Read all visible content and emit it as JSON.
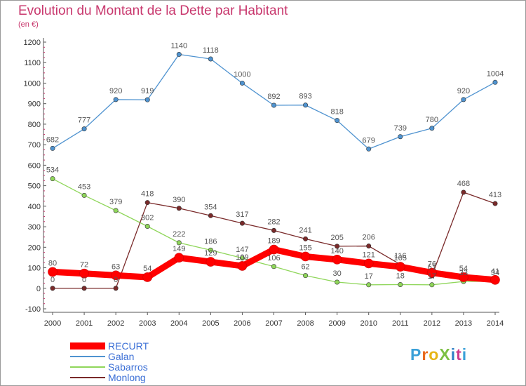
{
  "header": {
    "title": "Evolution du Montant de la Dette par Habitant",
    "subtitle": "(en €)"
  },
  "logo": {
    "text": "ProXiti",
    "colors": [
      "#3aa0d8",
      "#e96a1e",
      "#e6b517",
      "#7cc043",
      "#2f7fc6",
      "#cf3a8e",
      "#3aa0d8"
    ]
  },
  "chart_data": {
    "type": "line",
    "title": "Evolution du Montant de la Dette par Habitant",
    "subtitle": "(en €)",
    "x": [
      "2000",
      "2001",
      "2002",
      "2003",
      "2004",
      "2005",
      "2006",
      "2007",
      "2008",
      "2009",
      "2010",
      "2011",
      "2012",
      "2013",
      "2014"
    ],
    "ylim": [
      -100,
      1200
    ],
    "yticks": [
      -100,
      0,
      100,
      200,
      300,
      400,
      500,
      600,
      700,
      800,
      900,
      1000,
      1100,
      1200
    ],
    "grid": false,
    "legend_position": "bottom-left",
    "series": [
      {
        "name": "RECURT",
        "color": "#ff0000",
        "values": [
          80,
          72,
          63,
          54,
          149,
          129,
          109,
          189,
          155,
          140,
          121,
          105,
          76,
          54,
          41
        ]
      },
      {
        "name": "Galan",
        "color": "#4f93d0",
        "values": [
          682,
          777,
          920,
          919,
          1140,
          1118,
          1000,
          892,
          893,
          818,
          679,
          739,
          780,
          920,
          1004
        ]
      },
      {
        "name": "Sabarros",
        "color": "#8fd65a",
        "values": [
          534,
          453,
          379,
          302,
          222,
          186,
          147,
          106,
          62,
          30,
          17,
          18,
          17,
          33,
          34
        ]
      },
      {
        "name": "Monlong",
        "color": "#7a2a2a",
        "values": [
          0,
          0,
          0,
          418,
          390,
          354,
          317,
          282,
          241,
          205,
          206,
          116,
          61,
          468,
          413
        ]
      }
    ]
  }
}
